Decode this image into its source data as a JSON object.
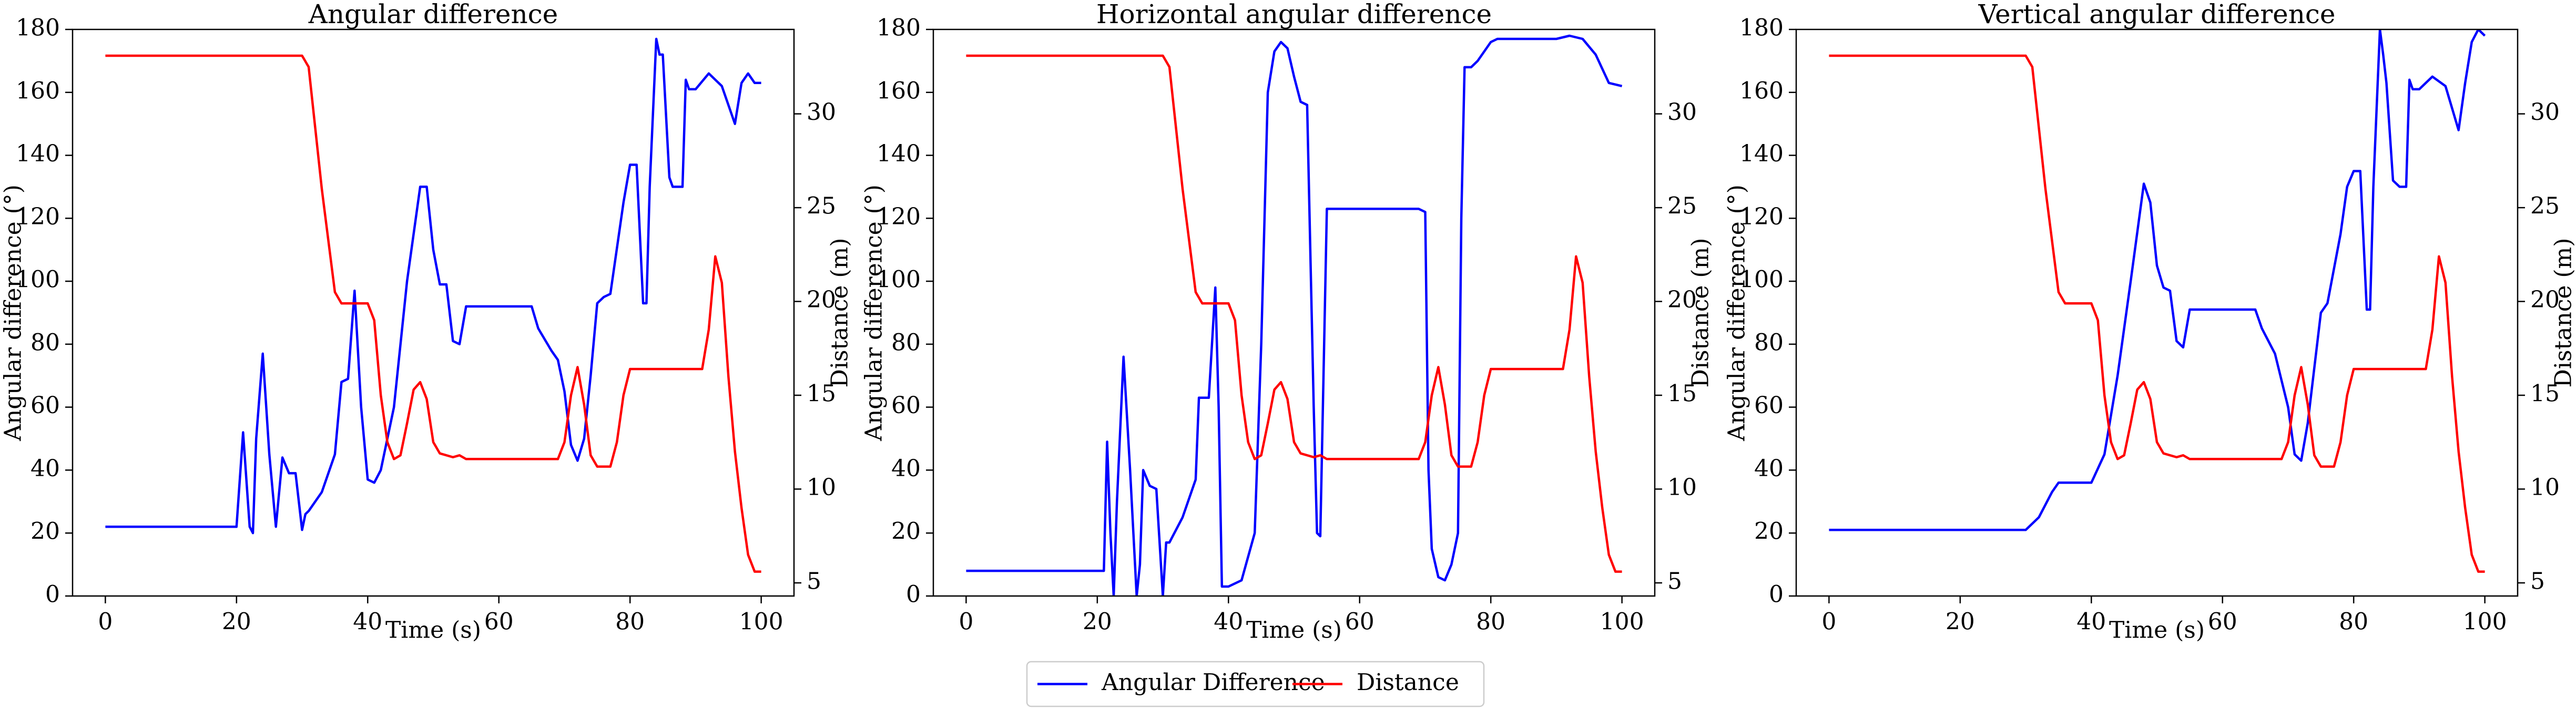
{
  "chart_data": [
    {
      "type": "line",
      "title": "Angular difference",
      "xlabel": "Time (s)",
      "ylabel": "Angular difference (°)",
      "y2label": "Distance (m)",
      "xlim": [
        -5,
        105
      ],
      "xticks": [
        0,
        20,
        40,
        60,
        80,
        100
      ],
      "ylim": [
        0,
        180
      ],
      "yticks": [
        0,
        20,
        40,
        60,
        80,
        100,
        120,
        140,
        160,
        180
      ],
      "y2lim": [
        4.3,
        34.5
      ],
      "y2ticks": [
        5,
        10,
        15,
        20,
        25,
        30
      ],
      "legend": "below",
      "series": [
        {
          "name": "Angular Difference",
          "color": "#0000ff",
          "x": [
            0,
            20,
            21,
            22,
            22.5,
            23,
            24,
            25,
            26,
            27,
            28,
            29,
            30,
            30.5,
            31,
            33,
            35,
            36,
            37,
            38,
            39,
            40,
            41,
            42,
            44,
            46,
            48,
            49,
            50,
            51,
            52,
            53,
            54,
            55,
            65,
            66,
            68,
            69,
            70,
            71,
            72,
            73,
            74,
            75,
            76,
            77,
            79,
            80,
            81,
            82,
            82.5,
            83,
            84,
            84.5,
            85,
            86,
            86.5,
            88,
            88.5,
            89,
            90,
            92,
            94,
            96,
            97,
            98,
            99,
            100
          ],
          "values": [
            22,
            22,
            52,
            22,
            20,
            50,
            77,
            45,
            22,
            44,
            39,
            39,
            21,
            26,
            27,
            33,
            45,
            68,
            69,
            97,
            60,
            37,
            36,
            40,
            60,
            100,
            130,
            130,
            110,
            99,
            99,
            81,
            80,
            92,
            92,
            85,
            78,
            75,
            65,
            48,
            43,
            50,
            70,
            93,
            95,
            96,
            125,
            137,
            137,
            93,
            93,
            130,
            177,
            172,
            172,
            133,
            130,
            130,
            164,
            161,
            161,
            166,
            162,
            150,
            163,
            166,
            163,
            163
          ]
        },
        {
          "name": "Distance",
          "color": "#ff0000",
          "axis": "y2",
          "x": [
            0,
            30,
            31,
            33,
            35,
            36,
            40,
            41,
            42,
            43,
            44,
            45,
            46,
            47,
            48,
            49,
            50,
            51,
            53,
            54,
            55,
            69,
            70,
            71,
            72,
            73,
            74,
            75,
            77,
            78,
            79,
            80,
            91,
            92,
            93,
            94,
            95,
            96,
            97,
            98,
            99,
            100
          ],
          "values": [
            33.1,
            33.1,
            32.5,
            26,
            20.5,
            19.9,
            19.9,
            19,
            15,
            12.5,
            11.6,
            11.8,
            13.5,
            15.3,
            15.7,
            14.8,
            12.5,
            11.9,
            11.7,
            11.8,
            11.6,
            11.6,
            12.5,
            15,
            16.5,
            14.5,
            11.8,
            11.2,
            11.2,
            12.5,
            15,
            16.4,
            16.4,
            18.5,
            22.4,
            21,
            16,
            12,
            9,
            6.5,
            5.6,
            5.6
          ]
        }
      ]
    },
    {
      "type": "line",
      "title": "Horizontal angular difference",
      "xlabel": "Time (s)",
      "ylabel": "Angular difference (°)",
      "y2label": "Distance (m)",
      "xlim": [
        -5,
        105
      ],
      "xticks": [
        0,
        20,
        40,
        60,
        80,
        100
      ],
      "ylim": [
        0,
        180
      ],
      "yticks": [
        0,
        20,
        40,
        60,
        80,
        100,
        120,
        140,
        160,
        180
      ],
      "y2lim": [
        4.3,
        34.5
      ],
      "y2ticks": [
        5,
        10,
        15,
        20,
        25,
        30
      ],
      "series": [
        {
          "name": "Angular Difference",
          "color": "#0000ff",
          "x": [
            0,
            21,
            21.5,
            22,
            22.5,
            23,
            24,
            25,
            26,
            26.5,
            27,
            28,
            29,
            30,
            30.5,
            31,
            33,
            35,
            35.5,
            37,
            38,
            38.5,
            39,
            40,
            42,
            44,
            45,
            46,
            47,
            48,
            49,
            50,
            51,
            52,
            53,
            53.5,
            54,
            55,
            69,
            70,
            70.5,
            71,
            72,
            73,
            74,
            75,
            75.5,
            76,
            77,
            78,
            80,
            81,
            90,
            92,
            94,
            96,
            98,
            100
          ],
          "values": [
            8,
            8,
            49,
            20,
            0,
            30,
            76,
            40,
            0,
            10,
            40,
            35,
            34,
            0,
            17,
            17,
            25,
            37,
            63,
            63,
            98,
            60,
            3,
            3,
            5,
            20,
            80,
            160,
            173,
            176,
            174,
            165,
            157,
            156,
            60,
            20,
            19,
            123,
            123,
            122,
            40,
            15,
            6,
            5,
            10,
            20,
            120,
            168,
            168,
            170,
            176,
            177,
            177,
            178,
            177,
            172,
            163,
            162
          ]
        },
        {
          "name": "Distance",
          "color": "#ff0000",
          "axis": "y2",
          "x": [
            0,
            30,
            31,
            33,
            35,
            36,
            40,
            41,
            42,
            43,
            44,
            45,
            46,
            47,
            48,
            49,
            50,
            51,
            53,
            54,
            55,
            69,
            70,
            71,
            72,
            73,
            74,
            75,
            77,
            78,
            79,
            80,
            91,
            92,
            93,
            94,
            95,
            96,
            97,
            98,
            99,
            100
          ],
          "values": [
            33.1,
            33.1,
            32.5,
            26,
            20.5,
            19.9,
            19.9,
            19,
            15,
            12.5,
            11.6,
            11.8,
            13.5,
            15.3,
            15.7,
            14.8,
            12.5,
            11.9,
            11.7,
            11.8,
            11.6,
            11.6,
            12.5,
            15,
            16.5,
            14.5,
            11.8,
            11.2,
            11.2,
            12.5,
            15,
            16.4,
            16.4,
            18.5,
            22.4,
            21,
            16,
            12,
            9,
            6.5,
            5.6,
            5.6
          ]
        }
      ]
    },
    {
      "type": "line",
      "title": "Vertical angular difference",
      "xlabel": "Time (s)",
      "ylabel": "Angular difference (°)",
      "y2label": "Distance (m)",
      "xlim": [
        -5,
        105
      ],
      "xticks": [
        0,
        20,
        40,
        60,
        80,
        100
      ],
      "ylim": [
        0,
        180
      ],
      "yticks": [
        0,
        20,
        40,
        60,
        80,
        100,
        120,
        140,
        160,
        180
      ],
      "y2lim": [
        4.3,
        34.5
      ],
      "y2ticks": [
        5,
        10,
        15,
        20,
        25,
        30
      ],
      "series": [
        {
          "name": "Angular Difference",
          "color": "#0000ff",
          "x": [
            0,
            30,
            32,
            34,
            35,
            40,
            42,
            44,
            46,
            48,
            49,
            50,
            51,
            52,
            53,
            54,
            55,
            65,
            66,
            68,
            70,
            71,
            72,
            73,
            75,
            76,
            78,
            79,
            80,
            81,
            82,
            82.5,
            83,
            84,
            84.5,
            85,
            86,
            87,
            88,
            88.5,
            89,
            90,
            92,
            94,
            96,
            97,
            98,
            99,
            100
          ],
          "values": [
            21,
            21,
            25,
            33,
            36,
            36,
            45,
            70,
            100,
            131,
            125,
            105,
            98,
            97,
            81,
            79,
            91,
            91,
            85,
            77,
            60,
            45,
            43,
            55,
            90,
            93,
            115,
            130,
            135,
            135,
            91,
            91,
            130,
            180,
            172,
            163,
            132,
            130,
            130,
            164,
            161,
            161,
            165,
            162,
            148,
            163,
            176,
            180,
            178
          ]
        },
        {
          "name": "Distance",
          "color": "#ff0000",
          "axis": "y2",
          "x": [
            0,
            30,
            31,
            33,
            35,
            36,
            40,
            41,
            42,
            43,
            44,
            45,
            46,
            47,
            48,
            49,
            50,
            51,
            53,
            54,
            55,
            69,
            70,
            71,
            72,
            73,
            74,
            75,
            77,
            78,
            79,
            80,
            91,
            92,
            93,
            94,
            95,
            96,
            97,
            98,
            99,
            100
          ],
          "values": [
            33.1,
            33.1,
            32.5,
            26,
            20.5,
            19.9,
            19.9,
            19,
            15,
            12.5,
            11.6,
            11.8,
            13.5,
            15.3,
            15.7,
            14.8,
            12.5,
            11.9,
            11.7,
            11.8,
            11.6,
            11.6,
            12.5,
            15,
            16.5,
            14.5,
            11.8,
            11.2,
            11.2,
            12.5,
            15,
            16.4,
            16.4,
            18.5,
            22.4,
            21,
            16,
            12,
            9,
            6.5,
            5.6,
            5.6
          ]
        }
      ]
    }
  ]
}
